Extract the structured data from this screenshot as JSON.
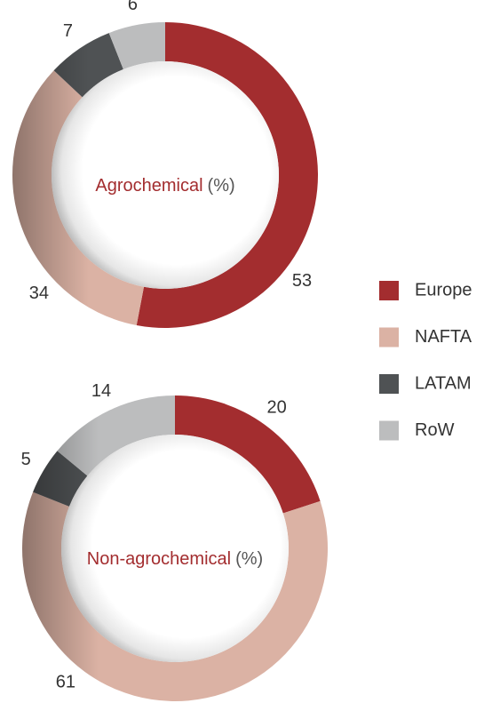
{
  "chart_data": [
    {
      "type": "donut",
      "title": "Agrochemical",
      "unit_label": "(%)",
      "categories": [
        "Europe",
        "NAFTA",
        "LATAM",
        "RoW"
      ],
      "values": [
        53,
        34,
        7,
        6
      ],
      "colors": [
        "#a32d2f",
        "#dbb2a4",
        "#4f5254",
        "#bcbdbe"
      ]
    },
    {
      "type": "donut",
      "title": "Non-agrochemical",
      "unit_label": "(%)",
      "categories": [
        "Europe",
        "NAFTA",
        "LATAM",
        "RoW"
      ],
      "values": [
        20,
        61,
        5,
        14
      ],
      "colors": [
        "#a32d2f",
        "#dbb2a4",
        "#4f5254",
        "#bcbdbe"
      ]
    }
  ]
}
